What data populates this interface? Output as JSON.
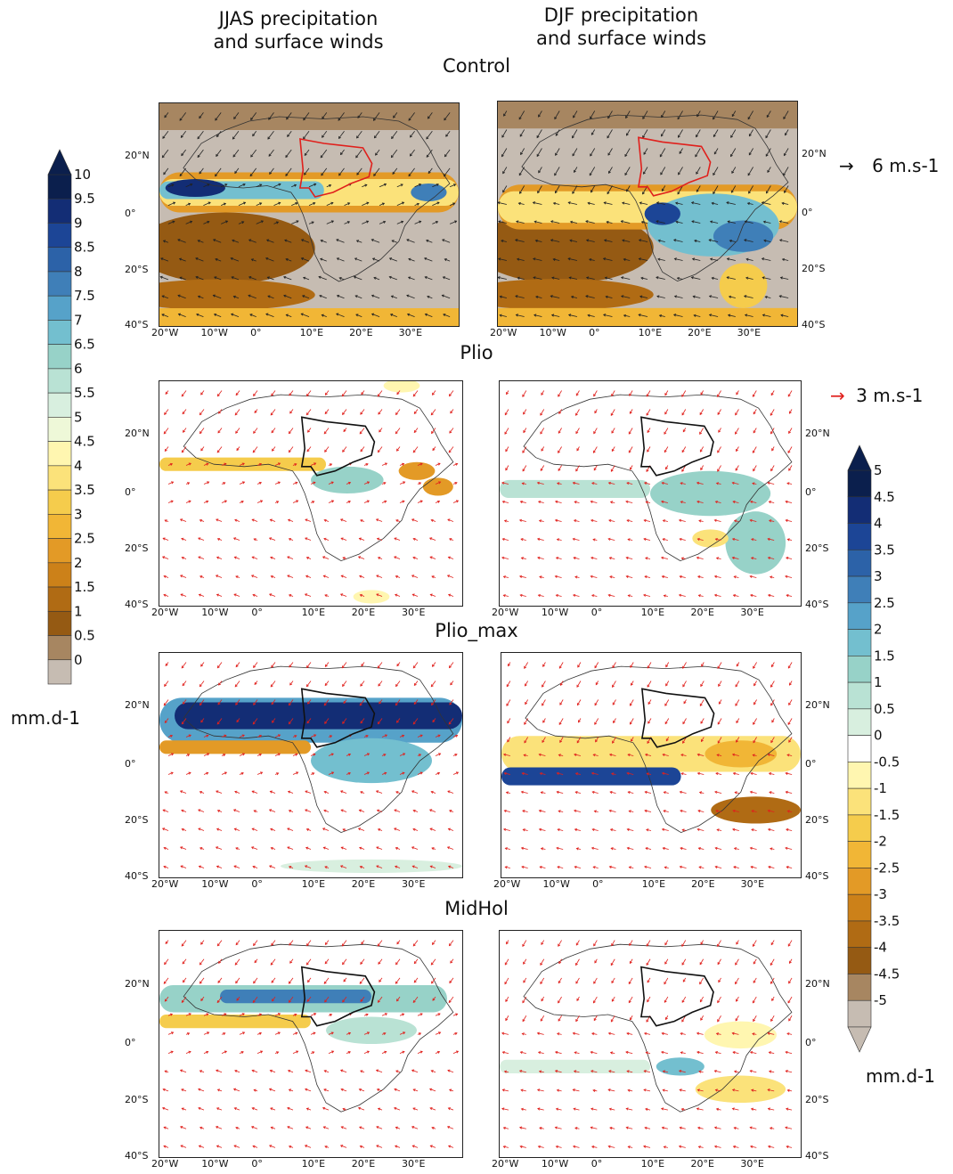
{
  "columns": [
    "JJAS precipitation\nand surface winds",
    "DJF precipitation\nand surface winds"
  ],
  "col_titles": {
    "left_1": "JJAS precipitation",
    "left_2": "and surface winds",
    "right_1": "DJF precipitation",
    "right_2": "and surface winds"
  },
  "rows": [
    "Control",
    "Plio",
    "Plio_max",
    "MidHol"
  ],
  "lon_ticks": [
    "20°W",
    "10°W",
    "0°",
    "10°E",
    "20°E",
    "30°E"
  ],
  "lat_ticks": [
    "20°N",
    "0°",
    "20°S",
    "40°S"
  ],
  "wind_refs": {
    "control": "6 m.s-1",
    "anomaly": "3 m.s-1"
  },
  "colorbar_left": {
    "labels": [
      "10",
      "9.5",
      "9",
      "8.5",
      "8",
      "7.5",
      "7",
      "6.5",
      "6",
      "5.5",
      "5",
      "4.5",
      "4",
      "3.5",
      "3",
      "2.5",
      "2",
      "1.5",
      "1",
      "0.5",
      "0"
    ],
    "unit": "mm.d-1",
    "colors": [
      "#0b1f4d",
      "#132d75",
      "#1c4596",
      "#2c62a8",
      "#3f7fb8",
      "#56a2c9",
      "#73bfcf",
      "#97d2c8",
      "#b9e2d4",
      "#d8efdf",
      "#eef8d8",
      "#fff6b0",
      "#fbe27a",
      "#f5cc4c",
      "#f1b636",
      "#e39a26",
      "#cc8119",
      "#b06b14",
      "#955a13",
      "#a78661",
      "#c6bcb2"
    ]
  },
  "colorbar_right": {
    "labels": [
      "5",
      "4.5",
      "4",
      "3.5",
      "3",
      "2.5",
      "2",
      "1.5",
      "1",
      "0.5",
      "0",
      "-0.5",
      "-1",
      "-1.5",
      "-2",
      "-2.5",
      "-3",
      "-3.5",
      "-4",
      "-4.5",
      "-5"
    ],
    "unit": "mm.d-1",
    "colors": [
      "#0b1f4d",
      "#132d75",
      "#1c4596",
      "#2c62a8",
      "#3f7fb8",
      "#56a2c9",
      "#73bfcf",
      "#97d2c8",
      "#b9e2d4",
      "#d8efdf",
      "#ffffff",
      "#fff6b0",
      "#fbe27a",
      "#f5cc4c",
      "#f1b636",
      "#e39a26",
      "#cc8119",
      "#b06b14",
      "#955a13",
      "#a78661",
      "#c6bcb2"
    ]
  }
}
